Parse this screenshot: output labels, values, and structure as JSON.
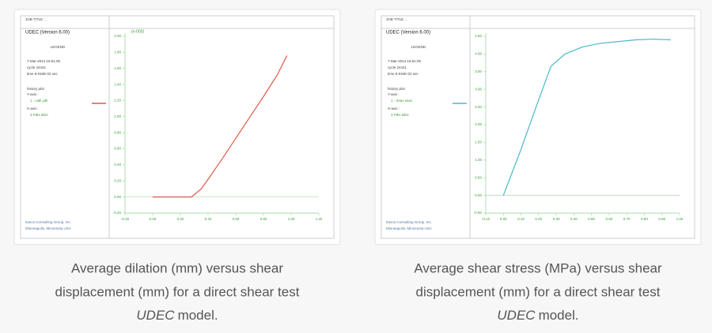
{
  "chart_data": [
    {
      "type": "line",
      "job_title": "JOB TITLE : .",
      "program": "UDEC (Version 6.00)",
      "legend_title": "LEGEND",
      "date": "7-Mar-2014 15:51:05",
      "cycle": "cycle 24441",
      "time": "time 9.916E-02 sec",
      "history_label": "history plot",
      "y_axis_label": "Y-axis :",
      "x_axis_label": "X-axis :",
      "x_history": "3 Pdis  tdisc",
      "credit": [
        "Itasca Consulting Group, Inc.",
        "Minneapolis, Minnesota USA"
      ],
      "y_unit_label": "(e-003)",
      "x": [
        0.0,
        0.1,
        0.2,
        0.28,
        0.35,
        0.4,
        0.5,
        0.6,
        0.7,
        0.8,
        0.9,
        0.97
      ],
      "series": [
        {
          "name": "1 - Udil  ydil",
          "color": "#e2574c",
          "values": [
            0,
            0,
            0,
            0,
            0.1,
            0.22,
            0.47,
            0.73,
            0.99,
            1.25,
            1.52,
            1.76
          ]
        }
      ],
      "xlim": [
        -0.2,
        1.2
      ],
      "xticks": [
        {
          "value": -0.2,
          "label": "-0.20"
        },
        {
          "value": 0,
          "label": "0.00"
        },
        {
          "value": 0.2,
          "label": "0.20"
        },
        {
          "value": 0.4,
          "label": "0.40"
        },
        {
          "value": 0.6,
          "label": "0.60"
        },
        {
          "value": 0.8,
          "label": "0.80"
        },
        {
          "value": 1,
          "label": "1.00"
        },
        {
          "value": 1.2,
          "label": "1.20"
        }
      ],
      "ylim": [
        -0.2,
        2.0
      ],
      "yticks": [
        {
          "value": -0.2,
          "label": "-0.20"
        },
        {
          "value": 0,
          "label": "0.00"
        },
        {
          "value": 0.2,
          "label": "0.20"
        },
        {
          "value": 0.4,
          "label": "0.40"
        },
        {
          "value": 0.6,
          "label": "0.60"
        },
        {
          "value": 0.8,
          "label": "0.80"
        },
        {
          "value": 1,
          "label": "1.00"
        },
        {
          "value": 1.2,
          "label": "1.20"
        },
        {
          "value": 1.4,
          "label": "1.40"
        },
        {
          "value": 1.6,
          "label": "1.60"
        },
        {
          "value": 1.8,
          "label": "1.80"
        },
        {
          "value": 2,
          "label": "2.00"
        }
      ],
      "caption": [
        "Average dilation (mm) versus shear",
        "displacement (mm) for a direct shear test"
      ],
      "caption_emphasis": "UDEC",
      "caption_end": "model."
    },
    {
      "type": "line",
      "job_title": "JOB TITLE : .",
      "program": "UDEC (Version 6.00)",
      "legend_title": "LEGEND",
      "date": "7-Mar-2014 15:51:05",
      "cycle": "cycle 24441",
      "time": "time 9.916E-02 sec",
      "history_label": "history plot",
      "y_axis_label": "Y-axis :",
      "x_axis_label": "X-axis :",
      "x_history": "3 Pdis  tdisc",
      "credit": [
        "Itasca Consulting Group, Inc.",
        "Minneapolis, Minnesota USA"
      ],
      "x": [
        0.0,
        0.1,
        0.2,
        0.27,
        0.35,
        0.45,
        0.55,
        0.65,
        0.75,
        0.85,
        0.95
      ],
      "series": [
        {
          "name": "1 - Ssav  ssav",
          "color": "#4bb8cc",
          "values": [
            0,
            1.3,
            2.7,
            3.65,
            4.0,
            4.2,
            4.3,
            4.35,
            4.4,
            4.42,
            4.4
          ]
        }
      ],
      "xlim": [
        -0.1,
        1.0
      ],
      "xticks": [
        {
          "value": -0.1,
          "label": "-0.10"
        },
        {
          "value": 0,
          "label": "0.00"
        },
        {
          "value": 0.1,
          "label": "0.10"
        },
        {
          "value": 0.2,
          "label": "0.20"
        },
        {
          "value": 0.3,
          "label": "0.30"
        },
        {
          "value": 0.4,
          "label": "0.40"
        },
        {
          "value": 0.5,
          "label": "0.50"
        },
        {
          "value": 0.6,
          "label": "0.60"
        },
        {
          "value": 0.7,
          "label": "0.70"
        },
        {
          "value": 0.8,
          "label": "0.80"
        },
        {
          "value": 0.9,
          "label": "0.90"
        },
        {
          "value": 1,
          "label": "1.00"
        }
      ],
      "ylim": [
        -0.5,
        4.5
      ],
      "yticks": [
        {
          "value": -0.5,
          "label": "-0.50"
        },
        {
          "value": 0,
          "label": "0.00"
        },
        {
          "value": 0.5,
          "label": "0.50"
        },
        {
          "value": 1,
          "label": "1.00"
        },
        {
          "value": 1.5,
          "label": "1.50"
        },
        {
          "value": 2,
          "label": "2.00"
        },
        {
          "value": 2.5,
          "label": "2.50"
        },
        {
          "value": 3,
          "label": "3.00"
        },
        {
          "value": 3.5,
          "label": "3.50"
        },
        {
          "value": 4,
          "label": "4.00"
        },
        {
          "value": 4.5,
          "label": "4.50"
        }
      ],
      "caption": [
        "Average shear stress (MPa) versus shear",
        "displacement (mm) for a direct shear test"
      ],
      "caption_emphasis": "UDEC",
      "caption_end": "model."
    }
  ]
}
